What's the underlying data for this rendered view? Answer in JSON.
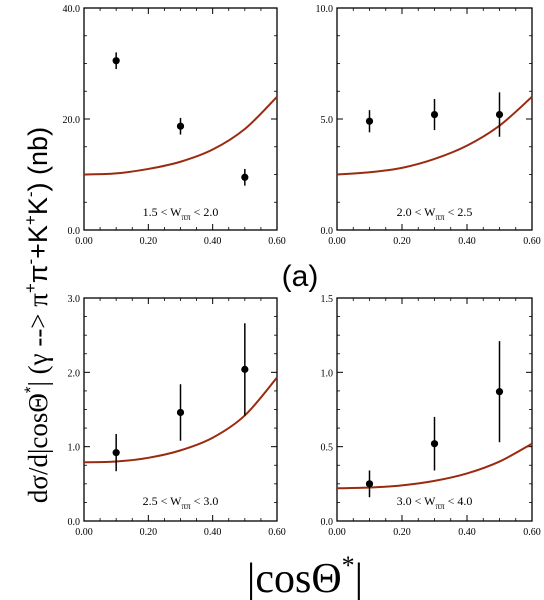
{
  "figure_label": "(a)",
  "ylabel_text": "dσ/d|cosΘ*| (γ --> π⁺π⁻+K⁺K⁻) (nb)",
  "xlabel_text": "|cosΘ*|",
  "colors": {
    "curve": "#9a2a10",
    "points": "#000000",
    "frame": "#000000"
  },
  "chart_data": [
    {
      "type": "scatter",
      "annotation": "1.5 < Wππ < 2.0",
      "annotation_parts": {
        "pre": "1.5 < W",
        "sub": "ππ",
        "post": " < 2.0"
      },
      "xlim": [
        0.0,
        0.6
      ],
      "ylim": [
        0.0,
        40.0
      ],
      "x_ticks": [
        "0.00",
        "0.20",
        "0.40",
        "0.60"
      ],
      "y_ticks": [
        "0.0",
        "20.0",
        "40.0"
      ],
      "y_tick_values": [
        0,
        20,
        40
      ],
      "points": [
        {
          "x": 0.1,
          "y": 30.5,
          "err": 1.5
        },
        {
          "x": 0.3,
          "y": 18.7,
          "err": 1.5
        },
        {
          "x": 0.5,
          "y": 9.5,
          "err": 1.5
        }
      ],
      "curve": {
        "x": [
          0.0,
          0.1,
          0.2,
          0.3,
          0.4,
          0.5,
          0.6
        ],
        "y": [
          10.0,
          10.2,
          11.0,
          12.3,
          14.5,
          18.2,
          24.0
        ]
      }
    },
    {
      "type": "scatter",
      "annotation": "2.0 < Wππ < 2.5",
      "annotation_parts": {
        "pre": "2.0 < W",
        "sub": "ππ",
        "post": " < 2.5"
      },
      "xlim": [
        0.0,
        0.6
      ],
      "ylim": [
        0.0,
        10.0
      ],
      "x_ticks": [
        "0.00",
        "0.20",
        "0.40",
        "0.60"
      ],
      "y_ticks": [
        "0.0",
        "5.0",
        "10.0"
      ],
      "y_tick_values": [
        0,
        5,
        10
      ],
      "points": [
        {
          "x": 0.1,
          "y": 4.9,
          "err": 0.5
        },
        {
          "x": 0.3,
          "y": 5.2,
          "err": 0.7
        },
        {
          "x": 0.5,
          "y": 5.2,
          "err": 1.0
        }
      ],
      "curve": {
        "x": [
          0.0,
          0.1,
          0.2,
          0.3,
          0.4,
          0.5,
          0.6
        ],
        "y": [
          2.5,
          2.6,
          2.8,
          3.2,
          3.8,
          4.7,
          6.0
        ]
      }
    },
    {
      "type": "scatter",
      "annotation": "2.5 < Wππ < 3.0",
      "annotation_parts": {
        "pre": "2.5 < W",
        "sub": "ππ",
        "post": " < 3.0"
      },
      "xlim": [
        0.0,
        0.6
      ],
      "ylim": [
        0.0,
        3.0
      ],
      "x_ticks": [
        "0.00",
        "0.20",
        "0.40",
        "0.60"
      ],
      "y_ticks": [
        "0.0",
        "1.0",
        "2.0",
        "3.0"
      ],
      "y_tick_values": [
        0,
        1,
        2,
        3
      ],
      "points": [
        {
          "x": 0.1,
          "y": 0.92,
          "err": 0.25
        },
        {
          "x": 0.3,
          "y": 1.46,
          "err": 0.38
        },
        {
          "x": 0.5,
          "y": 2.04,
          "err": 0.62
        }
      ],
      "curve": {
        "x": [
          0.0,
          0.1,
          0.2,
          0.3,
          0.4,
          0.5,
          0.6
        ],
        "y": [
          0.79,
          0.8,
          0.85,
          0.95,
          1.12,
          1.42,
          1.93
        ]
      }
    },
    {
      "type": "scatter",
      "annotation": "3.0 < Wππ < 4.0",
      "annotation_parts": {
        "pre": "3.0 < W",
        "sub": "ππ",
        "post": " < 4.0"
      },
      "xlim": [
        0.0,
        0.6
      ],
      "ylim": [
        0.0,
        1.5
      ],
      "x_ticks": [
        "0.00",
        "0.20",
        "0.40",
        "0.60"
      ],
      "y_ticks": [
        "0.0",
        "0.5",
        "1.0",
        "1.5"
      ],
      "y_tick_values": [
        0,
        0.5,
        1.0,
        1.5
      ],
      "points": [
        {
          "x": 0.1,
          "y": 0.25,
          "err": 0.09
        },
        {
          "x": 0.3,
          "y": 0.52,
          "err": 0.18
        },
        {
          "x": 0.5,
          "y": 0.87,
          "err": 0.34
        }
      ],
      "curve": {
        "x": [
          0.0,
          0.1,
          0.2,
          0.3,
          0.4,
          0.5,
          0.6
        ],
        "y": [
          0.22,
          0.225,
          0.24,
          0.27,
          0.32,
          0.4,
          0.52
        ]
      }
    }
  ]
}
